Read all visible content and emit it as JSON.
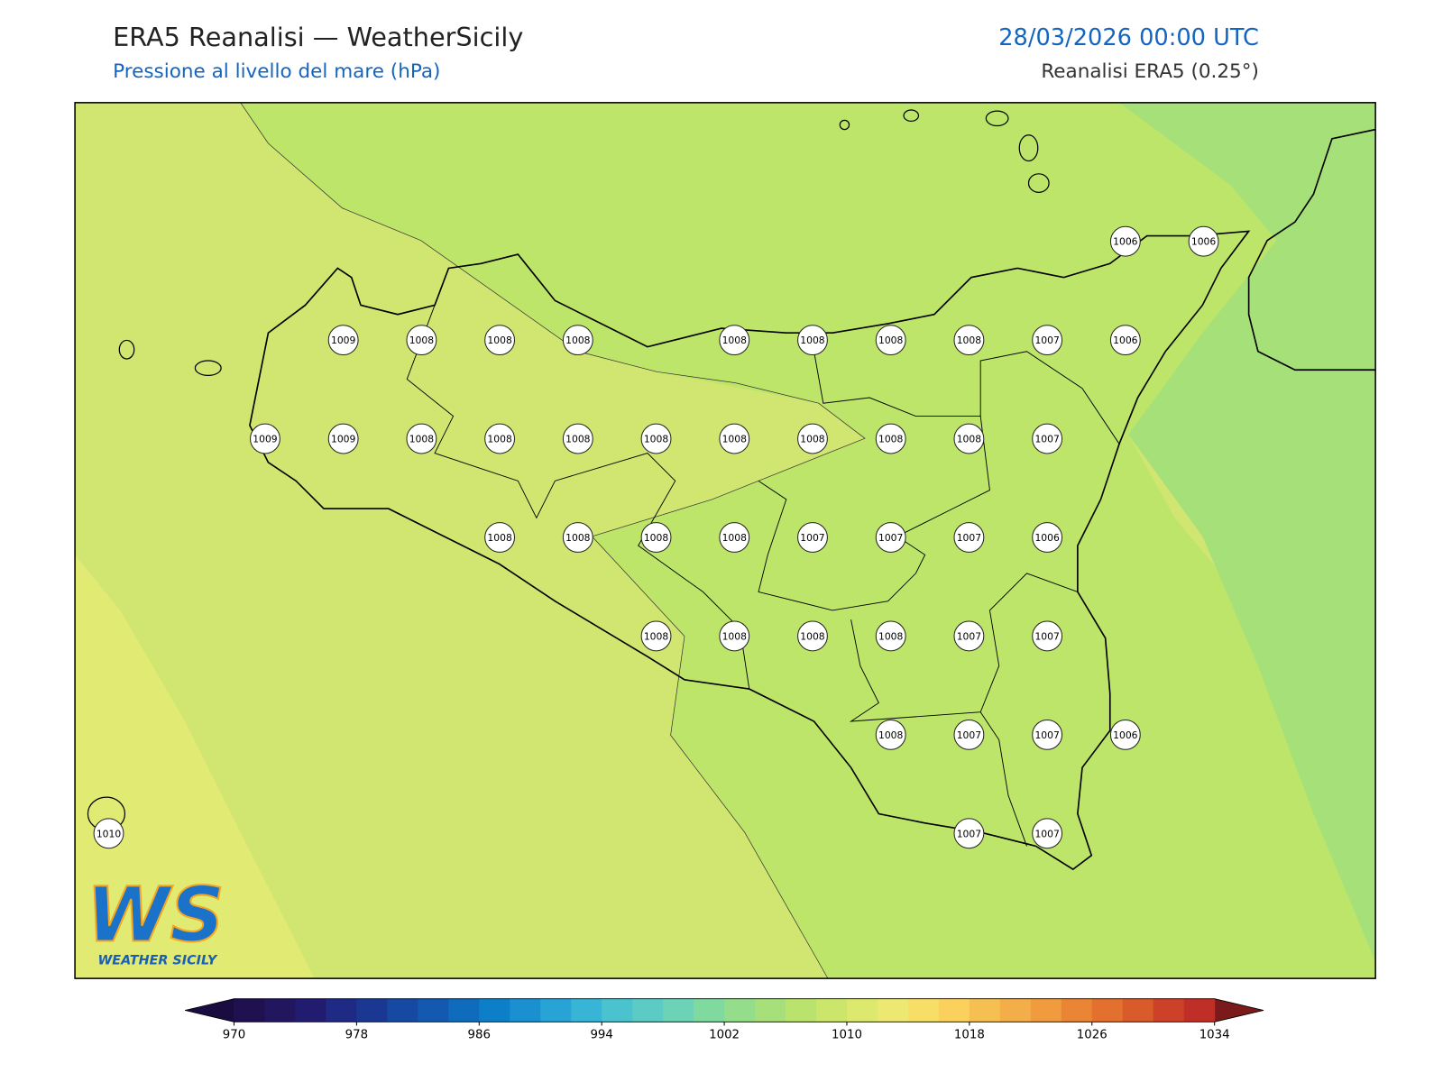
{
  "header": {
    "title": "ERA5 Reanalisi — WeatherSicily",
    "subtitle": "Pressione al livello del mare (hPa)",
    "datetime": "28/03/2026 00:00 UTC",
    "source": "Reanalisi ERA5 (0.25°)"
  },
  "map": {
    "stations": [
      1006,
      1006,
      1009,
      1008,
      1008,
      1008,
      1008,
      1008,
      1008,
      1008,
      1007,
      1006,
      1009,
      1009,
      1008,
      1008,
      1008,
      1008,
      1008,
      1008,
      1008,
      1008,
      1007,
      1008,
      1008,
      1008,
      1008,
      1007,
      1007,
      1007,
      1006,
      1008,
      1008,
      1008,
      1008,
      1007,
      1007,
      1008,
      1007,
      1007,
      1006,
      1010,
      1007,
      1007
    ]
  },
  "colorbar": {
    "levels": [
      970,
      972,
      974,
      976,
      978,
      980,
      982,
      984,
      986,
      988,
      990,
      992,
      994,
      996,
      998,
      1000,
      1002,
      1004,
      1006,
      1008,
      1010,
      1012,
      1014,
      1016,
      1018,
      1020,
      1022,
      1024,
      1026,
      1028,
      1030,
      1032,
      1034
    ],
    "colors": [
      "#1f1050",
      "#22165f",
      "#221c70",
      "#1f2a84",
      "#1a3792",
      "#1649a2",
      "#1359b0",
      "#0f6cbd",
      "#0d7ec8",
      "#1a90d0",
      "#27a3d6",
      "#38b5d6",
      "#4ac3cf",
      "#5ccbc3",
      "#6dd3b6",
      "#80d99f",
      "#94dd8a",
      "#a7df7a",
      "#b9e36c",
      "#cbe66a",
      "#dde96e",
      "#ede872",
      "#f7de66",
      "#fbd05c",
      "#f6bf52",
      "#f3ae49",
      "#ef9b3e",
      "#ea8535",
      "#e3702e",
      "#d95a2a",
      "#cc4127",
      "#c02f27"
    ],
    "under_color": "#1a0c40",
    "over_color": "#7a1a1a",
    "ticks": [
      970,
      978,
      986,
      994,
      1002,
      1010,
      1018,
      1026,
      1034
    ]
  },
  "logo": {
    "text": "WS",
    "caption": "WEATHER SICILY"
  }
}
